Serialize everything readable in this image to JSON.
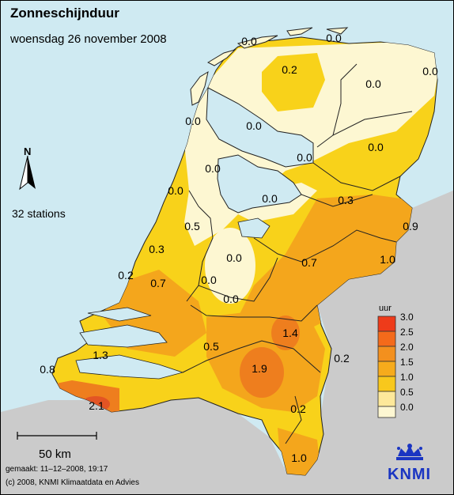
{
  "title": "Zonneschijnduur",
  "subtitle": "woensdag 26 november 2008",
  "north_label": "N",
  "stations_label": "32 stations",
  "scale_bar_label": "50 km",
  "made_text": "gemaakt: 11–12–2008, 19:17",
  "copyright_text": "(c) 2008, KNMI Klimaatdata en Advies",
  "logo_text": "KNMI",
  "legend": {
    "unit": "uur",
    "ticks": [
      "3.0",
      "2.5",
      "2.0",
      "1.5",
      "1.0",
      "0.5",
      "0.0"
    ],
    "colors": [
      "#ee3b1a",
      "#f46a1a",
      "#f3901e",
      "#f6ab1c",
      "#f8c81c",
      "#fde89a"
    ]
  },
  "colors": {
    "sea": "#cfeaf2",
    "foreign_land": "#cbcbcb",
    "level_0": "#fdf7d2",
    "level_05": "#f8d21a",
    "level_10": "#f4a61c",
    "level_15": "#ee7e1e",
    "level_20": "#e35424",
    "logo": "#1a35c2"
  },
  "station_values": [
    {
      "id": "s1",
      "value": "0.0"
    },
    {
      "id": "s2",
      "value": "0.0"
    },
    {
      "id": "s3",
      "value": "0.0"
    },
    {
      "id": "s4",
      "value": "0.2"
    },
    {
      "id": "s5",
      "value": "0.0"
    },
    {
      "id": "s6",
      "value": "0.0"
    },
    {
      "id": "s7",
      "value": "0.0"
    },
    {
      "id": "s8",
      "value": "0.0"
    },
    {
      "id": "s9",
      "value": "0.0"
    },
    {
      "id": "s10",
      "value": "0.0"
    },
    {
      "id": "s11",
      "value": "0.0"
    },
    {
      "id": "s12",
      "value": "0.0"
    },
    {
      "id": "s13",
      "value": "0.3"
    },
    {
      "id": "s14",
      "value": "0.5"
    },
    {
      "id": "s15",
      "value": "0.9"
    },
    {
      "id": "s16",
      "value": "0.3"
    },
    {
      "id": "s17",
      "value": "0.0"
    },
    {
      "id": "s18",
      "value": "0.7"
    },
    {
      "id": "s19",
      "value": "1.0"
    },
    {
      "id": "s20",
      "value": "0.2"
    },
    {
      "id": "s21",
      "value": "0.7"
    },
    {
      "id": "s22",
      "value": "0.0"
    },
    {
      "id": "s23",
      "value": "0.0"
    },
    {
      "id": "s24",
      "value": "1.4"
    },
    {
      "id": "s25",
      "value": "1.3"
    },
    {
      "id": "s26",
      "value": "0.5"
    },
    {
      "id": "s27",
      "value": "0.2"
    },
    {
      "id": "s28",
      "value": "0.8"
    },
    {
      "id": "s29",
      "value": "1.9"
    },
    {
      "id": "s30",
      "value": "2.1"
    },
    {
      "id": "s31",
      "value": "0.2"
    },
    {
      "id": "s32",
      "value": "1.0"
    }
  ]
}
